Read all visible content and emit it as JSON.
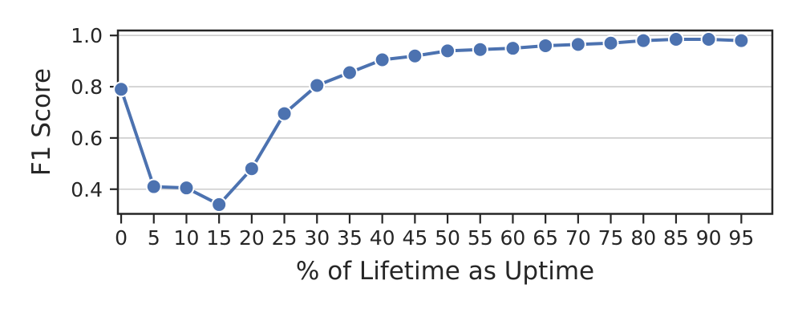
{
  "chart_data": {
    "type": "line",
    "title": "",
    "xlabel": "% of Lifetime as Uptime",
    "ylabel": "F1 Score",
    "x": [
      0,
      5,
      10,
      15,
      20,
      25,
      30,
      35,
      40,
      45,
      50,
      55,
      60,
      65,
      70,
      75,
      80,
      85,
      90,
      95
    ],
    "y": [
      0.79,
      0.41,
      0.405,
      0.34,
      0.48,
      0.695,
      0.805,
      0.855,
      0.905,
      0.92,
      0.94,
      0.945,
      0.95,
      0.96,
      0.965,
      0.97,
      0.98,
      0.985,
      0.985,
      0.98
    ],
    "xtick_labels": [
      "0",
      "5",
      "10",
      "15",
      "20",
      "25",
      "30",
      "35",
      "40",
      "45",
      "50",
      "55",
      "60",
      "65",
      "70",
      "75",
      "80",
      "85",
      "90",
      "95"
    ],
    "xtick_values": [
      0,
      5,
      10,
      15,
      20,
      25,
      30,
      35,
      40,
      45,
      50,
      55,
      60,
      65,
      70,
      75,
      80,
      85,
      90,
      95
    ],
    "ytick_labels": [
      "0.4",
      "0.6",
      "0.8",
      "1.0"
    ],
    "ytick_values": [
      0.4,
      0.6,
      0.8,
      1.0
    ],
    "xlim": [
      -0.5,
      99.75
    ],
    "ylim": [
      0.3037,
      1.0194
    ],
    "grid": "horizontal",
    "legend": "none",
    "line_color": "#4C72B0",
    "marker": "circle",
    "marker_edge_color": "#ffffff",
    "grid_color": "#cccccc",
    "axis_color": "#262626",
    "background_color": "#ffffff"
  }
}
